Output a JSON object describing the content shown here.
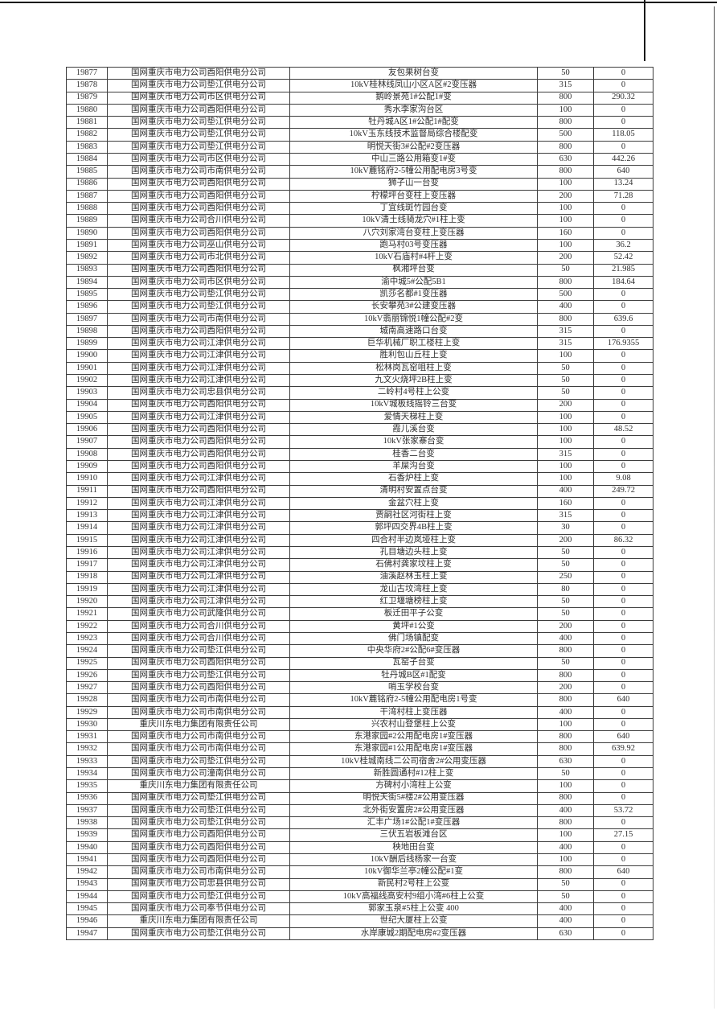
{
  "table": {
    "rows": [
      [
        "19877",
        "国网重庆市电力公司酉阳供电分公司",
        "友包果树台变",
        "50",
        "0"
      ],
      [
        "19878",
        "国网重庆市电力公司垫江供电分公司",
        "10kV桂林线凤山小区A区#2变压器",
        "315",
        "0"
      ],
      [
        "19879",
        "国网重庆市电力公司市区供电分公司",
        "鹅岭景苑1#公配1#变",
        "800",
        "290.32"
      ],
      [
        "19880",
        "国网重庆市电力公司酉阳供电分公司",
        "秀水李家沟台区",
        "100",
        "0"
      ],
      [
        "19881",
        "国网重庆市电力公司垫江供电分公司",
        "牡丹城A区1#公配1#配变",
        "800",
        "0"
      ],
      [
        "19882",
        "国网重庆市电力公司垫江供电分公司",
        "10kV玉东线技术监督局综合楼配变",
        "500",
        "118.05"
      ],
      [
        "19883",
        "国网重庆市电力公司垫江供电分公司",
        "明悦天街3#公配#2变压器",
        "800",
        "0"
      ],
      [
        "19884",
        "国网重庆市电力公司市区供电分公司",
        "中山三路公用箱变1#变",
        "630",
        "442.26"
      ],
      [
        "19885",
        "国网重庆市电力公司市南供电分公司",
        "10kV蔍铭府2-5幢公用配电房3号变",
        "800",
        "640"
      ],
      [
        "19886",
        "国网重庆市电力公司酉阳供电分公司",
        "狮子山一台变",
        "100",
        "13.24"
      ],
      [
        "19887",
        "国网重庆市电力公司酉阳供电分公司",
        "柠檬坪台变柱上变压器",
        "200",
        "71.28"
      ],
      [
        "19888",
        "国网重庆市电力公司酉阳供电分公司",
        "丁宜线斑竹园台变",
        "100",
        "0"
      ],
      [
        "19889",
        "国网重庆市电力公司合川供电分公司",
        "10kV清土线骑龙穴#1柱上变",
        "100",
        "0"
      ],
      [
        "19890",
        "国网重庆市电力公司酉阳供电分公司",
        "八穴刘家湾台变柱上变压器",
        "160",
        "0"
      ],
      [
        "19891",
        "国网重庆市电力公司巫山供电分公司",
        "跑马村03号变压器",
        "100",
        "36.2"
      ],
      [
        "19892",
        "国网重庆市电力公司市北供电分公司",
        "10kV石庙村#4杆上变",
        "200",
        "52.42"
      ],
      [
        "19893",
        "国网重庆市电力公司酉阳供电分公司",
        "枫湘坪台变",
        "50",
        "21.985"
      ],
      [
        "19894",
        "国网重庆市电力公司市区供电分公司",
        "渝中城5#公配5B1",
        "800",
        "184.64"
      ],
      [
        "19895",
        "国网重庆市电力公司垫江供电分公司",
        "凯莎名都#1变压器",
        "500",
        "0"
      ],
      [
        "19896",
        "国网重庆市电力公司垫江供电分公司",
        "长安攀苑3#公建变压器",
        "400",
        "0"
      ],
      [
        "19897",
        "国网重庆市电力公司市南供电分公司",
        "10kV翡丽锦悦1幢公配#2变",
        "800",
        "639.6"
      ],
      [
        "19898",
        "国网重庆市电力公司酉阳供电分公司",
        "城南高速路口台变",
        "315",
        "0"
      ],
      [
        "19899",
        "国网重庆市电力公司江津供电分公司",
        "巨华机械厂职工楼柱上变",
        "315",
        "176.9355"
      ],
      [
        "19900",
        "国网重庆市电力公司江津供电分公司",
        "胜利包山丘柱上变",
        "100",
        "0"
      ],
      [
        "19901",
        "国网重庆市电力公司江津供电分公司",
        "松林岗瓦窑咀柱上变",
        "50",
        "0"
      ],
      [
        "19902",
        "国网重庆市电力公司江津供电分公司",
        "九文火烧坪2B柱上变",
        "50",
        "0"
      ],
      [
        "19903",
        "国网重庆市电力公司忠县供电分公司",
        "二岭村4号柱上公变",
        "50",
        "0"
      ],
      [
        "19904",
        "国网重庆市电力公司酉阳供电分公司",
        "10kV城板线摇铃三台变",
        "200",
        "0"
      ],
      [
        "19905",
        "国网重庆市电力公司江津供电分公司",
        "爱情天梯柱上变",
        "100",
        "0"
      ],
      [
        "19906",
        "国网重庆市电力公司酉阳供电分公司",
        "霞儿溪台变",
        "100",
        "48.52"
      ],
      [
        "19907",
        "国网重庆市电力公司酉阳供电分公司",
        "10kV张家寨台变",
        "100",
        "0"
      ],
      [
        "19908",
        "国网重庆市电力公司酉阳供电分公司",
        "桂香二台变",
        "315",
        "0"
      ],
      [
        "19909",
        "国网重庆市电力公司酉阳供电分公司",
        "羊屎沟台变",
        "100",
        "0"
      ],
      [
        "19910",
        "国网重庆市电力公司江津供电分公司",
        "石香炉柱上变",
        "100",
        "9.08"
      ],
      [
        "19911",
        "国网重庆市电力公司酉阳供电分公司",
        "清明村安置点台变",
        "400",
        "249.72"
      ],
      [
        "19912",
        "国网重庆市电力公司江津供电分公司",
        "金盆穴柱上变",
        "160",
        "0"
      ],
      [
        "19913",
        "国网重庆市电力公司江津供电分公司",
        "贾嗣社区河街柱上变",
        "315",
        "0"
      ],
      [
        "19914",
        "国网重庆市电力公司江津供电分公司",
        "郭坪四交界4B柱上变",
        "30",
        "0"
      ],
      [
        "19915",
        "国网重庆市电力公司江津供电分公司",
        "四合村半边岚垭柱上变",
        "200",
        "86.32"
      ],
      [
        "19916",
        "国网重庆市电力公司江津供电分公司",
        "孔目塘边头柱上变",
        "50",
        "0"
      ],
      [
        "19917",
        "国网重庆市电力公司江津供电分公司",
        "石佛村龚家坟柱上变",
        "50",
        "0"
      ],
      [
        "19918",
        "国网重庆市电力公司江津供电分公司",
        "油溪赵林玉柱上变",
        "250",
        "0"
      ],
      [
        "19919",
        "国网重庆市电力公司江津供电分公司",
        "龙山古坟湾柱上变",
        "80",
        "0"
      ],
      [
        "19920",
        "国网重庆市电力公司江津供电分公司",
        "红卫堰塘榜柱上变",
        "50",
        "0"
      ],
      [
        "19921",
        "国网重庆市电力公司武隆供电分公司",
        "板迁田平子公变",
        "50",
        "0"
      ],
      [
        "19922",
        "国网重庆市电力公司合川供电分公司",
        "黄坪#1公变",
        "200",
        "0"
      ],
      [
        "19923",
        "国网重庆市电力公司合川供电分公司",
        "佛门场镇配变",
        "400",
        "0"
      ],
      [
        "19924",
        "国网重庆市电力公司垫江供电分公司",
        "中央华府2#公配6#变压器",
        "800",
        "0"
      ],
      [
        "19925",
        "国网重庆市电力公司酉阳供电分公司",
        "瓦窑子台变",
        "50",
        "0"
      ],
      [
        "19926",
        "国网重庆市电力公司垫江供电分公司",
        "牡丹城B区#1配变",
        "800",
        "0"
      ],
      [
        "19927",
        "国网重庆市电力公司酉阳供电分公司",
        "哨玉学校台变",
        "200",
        "0"
      ],
      [
        "19928",
        "国网重庆市电力公司市南供电分公司",
        "10kV蔍铭府2-5幢公用配电房1号变",
        "800",
        "640"
      ],
      [
        "19929",
        "国网重庆市电力公司市南供电分公司",
        "干湾村柱上变压器",
        "400",
        "0"
      ],
      [
        "19930",
        "重庆川东电力集团有限责任公司",
        "兴农村山登堡柱上公变",
        "100",
        "0"
      ],
      [
        "19931",
        "国网重庆市电力公司市南供电分公司",
        "东港家园#2公用配电房1#变压器",
        "800",
        "640"
      ],
      [
        "19932",
        "国网重庆市电力公司市南供电分公司",
        "东港家园#1公用配电房1#变压器",
        "800",
        "639.92"
      ],
      [
        "19933",
        "国网重庆市电力公司垫江供电分公司",
        "10kV桂城南线二公司宿舍2#公用变压器",
        "630",
        "0"
      ],
      [
        "19934",
        "国网重庆市电力公司潼南供电分公司",
        "新胜圆通村#12柱上变",
        "50",
        "0"
      ],
      [
        "19935",
        "重庆川东电力集团有限责任公司",
        "方碑村小湾柱上公变",
        "100",
        "0"
      ],
      [
        "19936",
        "国网重庆市电力公司垫江供电分公司",
        "明悦天街5#楼2#公用变压器",
        "800",
        "0"
      ],
      [
        "19937",
        "国网重庆市电力公司垫江供电分公司",
        "北外街安置房2#公用变压器",
        "400",
        "53.72"
      ],
      [
        "19938",
        "国网重庆市电力公司垫江供电分公司",
        "汇丰广场1#公配1#变压器",
        "800",
        "0"
      ],
      [
        "19939",
        "国网重庆市电力公司酉阳供电分公司",
        "三伏五岩板滩台区",
        "100",
        "27.15"
      ],
      [
        "19940",
        "国网重庆市电力公司酉阳供电分公司",
        "秧地田台变",
        "400",
        "0"
      ],
      [
        "19941",
        "国网重庆市电力公司酉阳供电分公司",
        "10kV酬后线杨家一台变",
        "100",
        "0"
      ],
      [
        "19942",
        "国网重庆市电力公司市南供电分公司",
        "10kV御华兰亭2幢公配#1变",
        "800",
        "640"
      ],
      [
        "19943",
        "国网重庆市电力公司忠县供电分公司",
        "新民村2号柱上公变",
        "50",
        "0"
      ],
      [
        "19944",
        "国网重庆市电力公司垫江供电分公司",
        "10kV高福线高安村9组小湾#6柱上公变",
        "50",
        "0"
      ],
      [
        "19945",
        "国网重庆市电力公司奉节供电分公司",
        "郭家玉泉#5柱上公变 400",
        "400",
        "0"
      ],
      [
        "19946",
        "重庆川东电力集团有限责任公司",
        "世纪大厦柱上公变",
        "400",
        "0"
      ],
      [
        "19947",
        "国网重庆市电力公司垫江供电分公司",
        "水岸康城2期配电房#2变压器",
        "630",
        "0"
      ]
    ]
  }
}
